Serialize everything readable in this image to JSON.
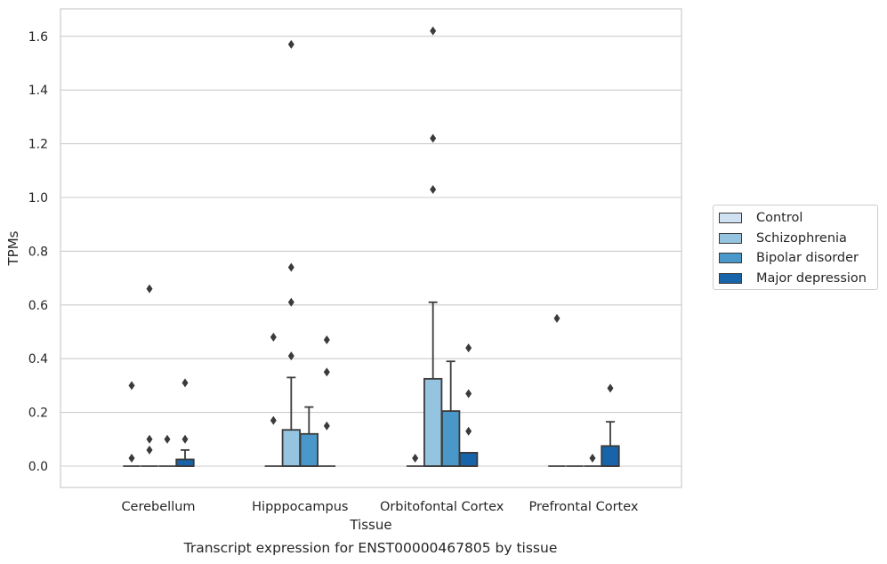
{
  "caption": "Transcript expression for ENST00000467805 by tissue",
  "chart_data": {
    "type": "box",
    "xlabel": "Tissue",
    "ylabel": "TPMs",
    "ylim": [
      -0.08,
      1.7
    ],
    "yticks": [
      0.0,
      0.2,
      0.4,
      0.6,
      0.8,
      1.0,
      1.2,
      1.4,
      1.6
    ],
    "ytick_labels": [
      "0.0",
      "0.2",
      "0.4",
      "0.6",
      "0.8",
      "1.0",
      "1.2",
      "1.4",
      "1.6"
    ],
    "grid": true,
    "legend_position": "right",
    "categories": [
      "Cerebellum",
      "Hipppocampus",
      "Orbitofontal Cortex",
      "Prefrontal Cortex"
    ],
    "series": [
      {
        "name": "Control",
        "color": "#d0e1f2",
        "boxes": [
          {
            "q1": 0,
            "median": 0,
            "q3": 0,
            "whisker_low": 0,
            "whisker_high": 0,
            "outliers": [
              0.3,
              0.03
            ]
          },
          {
            "q1": 0,
            "median": 0,
            "q3": 0,
            "whisker_low": 0,
            "whisker_high": 0,
            "outliers": [
              0.48,
              0.17
            ]
          },
          {
            "q1": 0,
            "median": 0,
            "q3": 0,
            "whisker_low": 0,
            "whisker_high": 0,
            "outliers": [
              0.03
            ]
          },
          {
            "q1": 0,
            "median": 0,
            "q3": 0,
            "whisker_low": 0,
            "whisker_high": 0,
            "outliers": [
              0.55
            ]
          }
        ]
      },
      {
        "name": "Schizophrenia",
        "color": "#94c4df",
        "boxes": [
          {
            "q1": 0,
            "median": 0,
            "q3": 0,
            "whisker_low": 0,
            "whisker_high": 0,
            "outliers": [
              0.66,
              0.1,
              0.06
            ]
          },
          {
            "q1": 0,
            "median": 0,
            "q3": 0.135,
            "whisker_low": 0,
            "whisker_high": 0.33,
            "outliers": [
              1.57,
              0.74,
              0.61,
              0.41
            ]
          },
          {
            "q1": 0,
            "median": 0,
            "q3": 0.325,
            "whisker_low": 0,
            "whisker_high": 0.61,
            "outliers": [
              1.62,
              1.22,
              1.03
            ]
          },
          {
            "q1": 0,
            "median": 0,
            "q3": 0,
            "whisker_low": 0,
            "whisker_high": 0,
            "outliers": []
          }
        ]
      },
      {
        "name": "Bipolar disorder",
        "color": "#4a98c9",
        "boxes": [
          {
            "q1": 0,
            "median": 0,
            "q3": 0,
            "whisker_low": 0,
            "whisker_high": 0,
            "outliers": [
              0.1
            ]
          },
          {
            "q1": 0,
            "median": 0,
            "q3": 0.12,
            "whisker_low": 0,
            "whisker_high": 0.22,
            "outliers": []
          },
          {
            "q1": 0,
            "median": 0,
            "q3": 0.205,
            "whisker_low": 0,
            "whisker_high": 0.39,
            "outliers": []
          },
          {
            "q1": 0,
            "median": 0,
            "q3": 0,
            "whisker_low": 0,
            "whisker_high": 0,
            "outliers": [
              0.03
            ]
          }
        ]
      },
      {
        "name": "Major depression",
        "color": "#1764ab",
        "boxes": [
          {
            "q1": 0,
            "median": 0,
            "q3": 0.025,
            "whisker_low": 0,
            "whisker_high": 0.06,
            "outliers": [
              0.31,
              0.1
            ]
          },
          {
            "q1": 0,
            "median": 0,
            "q3": 0,
            "whisker_low": 0,
            "whisker_high": 0,
            "outliers": [
              0.47,
              0.35,
              0.15
            ]
          },
          {
            "q1": 0,
            "median": 0,
            "q3": 0.05,
            "whisker_low": 0,
            "whisker_high": 0.05,
            "outliers": [
              0.44,
              0.27,
              0.13
            ]
          },
          {
            "q1": 0,
            "median": 0,
            "q3": 0.075,
            "whisker_low": 0,
            "whisker_high": 0.165,
            "outliers": [
              0.29
            ]
          }
        ]
      }
    ]
  }
}
